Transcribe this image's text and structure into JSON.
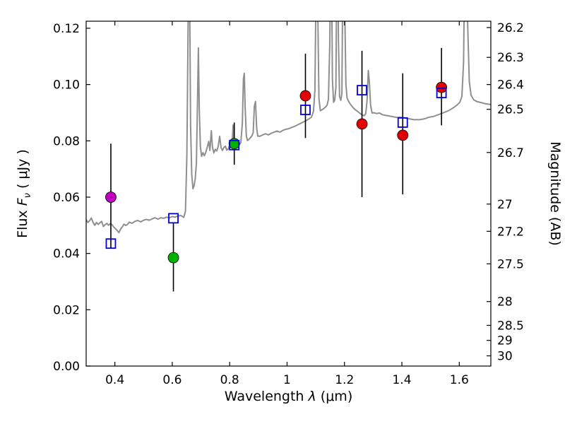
{
  "figure": {
    "background": "#ffffff"
  },
  "chart_data": {
    "type": "line",
    "title": "",
    "xlabel": "Wavelength λ (μm)",
    "xlabel_parts": {
      "pre": "Wavelength ",
      "italic": "λ",
      "post": " (μm)"
    },
    "ylabel": "Flux Fν ( μJy )",
    "ylabel_parts": {
      "pre": "Flux ",
      "italic": "F",
      "sub": "ν",
      "post": " ( μJy )"
    },
    "ylabel_right": "Magnitude (AB)",
    "xlim": [
      0.3,
      1.71
    ],
    "ylim": [
      0.0,
      0.1225
    ],
    "grid": false,
    "legend": "none",
    "x_ticks": [
      {
        "v": 0.4,
        "label": "0.4"
      },
      {
        "v": 0.6,
        "label": "0.6"
      },
      {
        "v": 0.8,
        "label": "0.8"
      },
      {
        "v": 1.0,
        "label": "1"
      },
      {
        "v": 1.2,
        "label": "1.2"
      },
      {
        "v": 1.4,
        "label": "1.4"
      },
      {
        "v": 1.6,
        "label": "1.6"
      }
    ],
    "y_ticks_left": [
      {
        "v": 0.0,
        "label": "0.00"
      },
      {
        "v": 0.02,
        "label": "0.02"
      },
      {
        "v": 0.04,
        "label": "0.04"
      },
      {
        "v": 0.06,
        "label": "0.06"
      },
      {
        "v": 0.08,
        "label": "0.08"
      },
      {
        "v": 0.1,
        "label": "0.10"
      },
      {
        "v": 0.12,
        "label": "0.12"
      }
    ],
    "y_ticks_right": [
      {
        "label": "26.2",
        "flux": 0.12023
      },
      {
        "label": "26.3",
        "flux": 0.10965
      },
      {
        "label": "26.4",
        "flux": 0.1
      },
      {
        "label": "26.5",
        "flux": 0.0912
      },
      {
        "label": "26.7",
        "flux": 0.07586
      },
      {
        "label": "27",
        "flux": 0.05754
      },
      {
        "label": "27.2",
        "flux": 0.04786
      },
      {
        "label": "27.5",
        "flux": 0.03631
      },
      {
        "label": "28",
        "flux": 0.02291
      },
      {
        "label": "28.5",
        "flux": 0.01445
      },
      {
        "label": "29",
        "flux": 0.00912
      },
      {
        "label": "30",
        "flux": 0.00363
      }
    ],
    "colors": {
      "spectrum": "#8f8f8f",
      "model_square": "#0000e0",
      "observed_magenta": "#bf00bf",
      "observed_green": "#00b200",
      "observed_red": "#e00000",
      "errorbar": "#000000"
    },
    "series": [
      {
        "name": "model-spectrum",
        "type": "line",
        "color": "#8f8f8f",
        "points": [
          [
            0.3,
            0.052
          ],
          [
            0.306,
            0.051
          ],
          [
            0.312,
            0.0516
          ],
          [
            0.318,
            0.0526
          ],
          [
            0.324,
            0.051
          ],
          [
            0.33,
            0.05
          ],
          [
            0.336,
            0.051
          ],
          [
            0.342,
            0.0503
          ],
          [
            0.348,
            0.0509
          ],
          [
            0.354,
            0.0514
          ],
          [
            0.36,
            0.0496
          ],
          [
            0.366,
            0.0502
          ],
          [
            0.372,
            0.0507
          ],
          [
            0.378,
            0.05
          ],
          [
            0.384,
            0.0506
          ],
          [
            0.39,
            0.0502
          ],
          [
            0.396,
            0.0494
          ],
          [
            0.402,
            0.0488
          ],
          [
            0.408,
            0.0482
          ],
          [
            0.414,
            0.0474
          ],
          [
            0.42,
            0.0487
          ],
          [
            0.426,
            0.0495
          ],
          [
            0.432,
            0.0504
          ],
          [
            0.438,
            0.0499
          ],
          [
            0.444,
            0.0503
          ],
          [
            0.45,
            0.0511
          ],
          [
            0.46,
            0.0507
          ],
          [
            0.47,
            0.0514
          ],
          [
            0.48,
            0.0517
          ],
          [
            0.49,
            0.0512
          ],
          [
            0.5,
            0.0518
          ],
          [
            0.51,
            0.0521
          ],
          [
            0.52,
            0.0518
          ],
          [
            0.53,
            0.0523
          ],
          [
            0.54,
            0.0527
          ],
          [
            0.55,
            0.0522
          ],
          [
            0.56,
            0.0527
          ],
          [
            0.57,
            0.0525
          ],
          [
            0.58,
            0.0529
          ],
          [
            0.59,
            0.0527
          ],
          [
            0.6,
            0.0531
          ],
          [
            0.61,
            0.0529
          ],
          [
            0.62,
            0.0533
          ],
          [
            0.63,
            0.0535
          ],
          [
            0.64,
            0.0528
          ],
          [
            0.646,
            0.055
          ],
          [
            0.651,
            0.075
          ],
          [
            0.655,
            0.12
          ],
          [
            0.658,
            0.145
          ],
          [
            0.661,
            0.125
          ],
          [
            0.664,
            0.085
          ],
          [
            0.668,
            0.068
          ],
          [
            0.672,
            0.063
          ],
          [
            0.676,
            0.064
          ],
          [
            0.68,
            0.0665
          ],
          [
            0.684,
            0.072
          ],
          [
            0.688,
            0.095
          ],
          [
            0.691,
            0.113
          ],
          [
            0.694,
            0.092
          ],
          [
            0.698,
            0.078
          ],
          [
            0.702,
            0.0745
          ],
          [
            0.707,
            0.0758
          ],
          [
            0.712,
            0.0747
          ],
          [
            0.717,
            0.076
          ],
          [
            0.722,
            0.0778
          ],
          [
            0.727,
            0.0798
          ],
          [
            0.731,
            0.0766
          ],
          [
            0.736,
            0.0836
          ],
          [
            0.74,
            0.0778
          ],
          [
            0.745,
            0.0757
          ],
          [
            0.75,
            0.077
          ],
          [
            0.755,
            0.0764
          ],
          [
            0.76,
            0.078
          ],
          [
            0.765,
            0.0816
          ],
          [
            0.77,
            0.0776
          ],
          [
            0.775,
            0.0766
          ],
          [
            0.78,
            0.0777
          ],
          [
            0.785,
            0.0781
          ],
          [
            0.79,
            0.0767
          ],
          [
            0.795,
            0.0771
          ],
          [
            0.8,
            0.0786
          ],
          [
            0.805,
            0.0777
          ],
          [
            0.809,
            0.0798
          ],
          [
            0.812,
            0.0856
          ],
          [
            0.815,
            0.0798
          ],
          [
            0.819,
            0.0781
          ],
          [
            0.824,
            0.0777
          ],
          [
            0.829,
            0.0784
          ],
          [
            0.834,
            0.0787
          ],
          [
            0.839,
            0.0794
          ],
          [
            0.844,
            0.086
          ],
          [
            0.848,
            0.102
          ],
          [
            0.851,
            0.104
          ],
          [
            0.854,
            0.092
          ],
          [
            0.858,
            0.0818
          ],
          [
            0.862,
            0.0801
          ],
          [
            0.867,
            0.0805
          ],
          [
            0.872,
            0.0811
          ],
          [
            0.877,
            0.0817
          ],
          [
            0.882,
            0.0829
          ],
          [
            0.886,
            0.0922
          ],
          [
            0.89,
            0.094
          ],
          [
            0.894,
            0.0846
          ],
          [
            0.898,
            0.0817
          ],
          [
            0.905,
            0.0816
          ],
          [
            0.915,
            0.0821
          ],
          [
            0.925,
            0.0825
          ],
          [
            0.935,
            0.0821
          ],
          [
            0.945,
            0.0827
          ],
          [
            0.955,
            0.0831
          ],
          [
            0.965,
            0.0835
          ],
          [
            0.975,
            0.0831
          ],
          [
            0.985,
            0.0837
          ],
          [
            0.995,
            0.0841
          ],
          [
            1.005,
            0.0843
          ],
          [
            1.015,
            0.0847
          ],
          [
            1.025,
            0.0851
          ],
          [
            1.035,
            0.0856
          ],
          [
            1.045,
            0.0861
          ],
          [
            1.055,
            0.0866
          ],
          [
            1.065,
            0.0871
          ],
          [
            1.075,
            0.0877
          ],
          [
            1.085,
            0.0884
          ],
          [
            1.092,
            0.0905
          ],
          [
            1.097,
            0.098
          ],
          [
            1.101,
            0.135
          ],
          [
            1.104,
            0.15
          ],
          [
            1.107,
            0.125
          ],
          [
            1.111,
            0.095
          ],
          [
            1.116,
            0.0907
          ],
          [
            1.121,
            0.091
          ],
          [
            1.127,
            0.0914
          ],
          [
            1.133,
            0.0919
          ],
          [
            1.139,
            0.0926
          ],
          [
            1.144,
            0.0946
          ],
          [
            1.149,
            0.115
          ],
          [
            1.152,
            0.15
          ],
          [
            1.155,
            0.138
          ],
          [
            1.158,
            0.102
          ],
          [
            1.162,
            0.0937
          ],
          [
            1.166,
            0.0944
          ],
          [
            1.17,
            0.0988
          ],
          [
            1.173,
            0.14
          ],
          [
            1.176,
            0.15
          ],
          [
            1.179,
            0.116
          ],
          [
            1.183,
            0.0958
          ],
          [
            1.187,
            0.0944
          ],
          [
            1.191,
            0.0968
          ],
          [
            1.194,
            0.136
          ],
          [
            1.197,
            0.15
          ],
          [
            1.201,
            0.126
          ],
          [
            1.205,
            0.1
          ],
          [
            1.209,
            0.0953
          ],
          [
            1.214,
            0.0941
          ],
          [
            1.22,
            0.0931
          ],
          [
            1.226,
            0.0923
          ],
          [
            1.232,
            0.0916
          ],
          [
            1.238,
            0.091
          ],
          [
            1.244,
            0.0906
          ],
          [
            1.25,
            0.0901
          ],
          [
            1.256,
            0.0896
          ],
          [
            1.262,
            0.0892
          ],
          [
            1.268,
            0.0889
          ],
          [
            1.274,
            0.0896
          ],
          [
            1.279,
            0.0945
          ],
          [
            1.283,
            0.105
          ],
          [
            1.287,
            0.1005
          ],
          [
            1.291,
            0.0928
          ],
          [
            1.296,
            0.0899
          ],
          [
            1.302,
            0.09
          ],
          [
            1.312,
            0.0897
          ],
          [
            1.322,
            0.0899
          ],
          [
            1.332,
            0.0893
          ],
          [
            1.342,
            0.0891
          ],
          [
            1.352,
            0.0889
          ],
          [
            1.362,
            0.0887
          ],
          [
            1.372,
            0.0885
          ],
          [
            1.382,
            0.0883
          ],
          [
            1.392,
            0.0884
          ],
          [
            1.402,
            0.0883
          ],
          [
            1.412,
            0.0881
          ],
          [
            1.422,
            0.0879
          ],
          [
            1.432,
            0.0877
          ],
          [
            1.442,
            0.0875
          ],
          [
            1.452,
            0.0875
          ],
          [
            1.462,
            0.0875
          ],
          [
            1.472,
            0.0877
          ],
          [
            1.482,
            0.0879
          ],
          [
            1.492,
            0.0883
          ],
          [
            1.502,
            0.0885
          ],
          [
            1.512,
            0.0887
          ],
          [
            1.522,
            0.0891
          ],
          [
            1.532,
            0.0895
          ],
          [
            1.542,
            0.0899
          ],
          [
            1.552,
            0.0903
          ],
          [
            1.562,
            0.0907
          ],
          [
            1.572,
            0.0913
          ],
          [
            1.582,
            0.0919
          ],
          [
            1.592,
            0.0927
          ],
          [
            1.602,
            0.0937
          ],
          [
            1.609,
            0.0958
          ],
          [
            1.615,
            0.108
          ],
          [
            1.619,
            0.145
          ],
          [
            1.624,
            0.15
          ],
          [
            1.629,
            0.122
          ],
          [
            1.635,
            0.101
          ],
          [
            1.641,
            0.0962
          ],
          [
            1.65,
            0.0946
          ],
          [
            1.662,
            0.0939
          ],
          [
            1.676,
            0.0936
          ],
          [
            1.69,
            0.0932
          ],
          [
            1.71,
            0.0929
          ]
        ]
      },
      {
        "name": "observed-photometry",
        "type": "scatter",
        "marker": "circle",
        "points": [
          {
            "x": 0.386,
            "y": 0.06,
            "err_minus": 0.018,
            "err_plus": 0.019,
            "color": "#bf00bf"
          },
          {
            "x": 0.604,
            "y": 0.0385,
            "err_minus": 0.012,
            "err_plus": 0.0125,
            "color": "#00b200"
          },
          {
            "x": 0.816,
            "y": 0.079,
            "err_minus": 0.0075,
            "err_plus": 0.0075,
            "color": "#00b200"
          },
          {
            "x": 1.064,
            "y": 0.096,
            "err_minus": 0.015,
            "err_plus": 0.015,
            "color": "#e00000"
          },
          {
            "x": 1.261,
            "y": 0.086,
            "err_minus": 0.026,
            "err_plus": 0.026,
            "color": "#e00000"
          },
          {
            "x": 1.403,
            "y": 0.082,
            "err_minus": 0.021,
            "err_plus": 0.022,
            "color": "#e00000"
          },
          {
            "x": 1.538,
            "y": 0.099,
            "err_minus": 0.0135,
            "err_plus": 0.014,
            "color": "#e00000"
          }
        ]
      },
      {
        "name": "model-photometry",
        "type": "scatter",
        "marker": "open-square",
        "color": "#0000e0",
        "points": [
          [
            0.386,
            0.0435
          ],
          [
            0.604,
            0.0525
          ],
          [
            0.816,
            0.0785
          ],
          [
            1.064,
            0.091
          ],
          [
            1.261,
            0.098
          ],
          [
            1.403,
            0.0865
          ],
          [
            1.538,
            0.097
          ]
        ]
      }
    ]
  }
}
